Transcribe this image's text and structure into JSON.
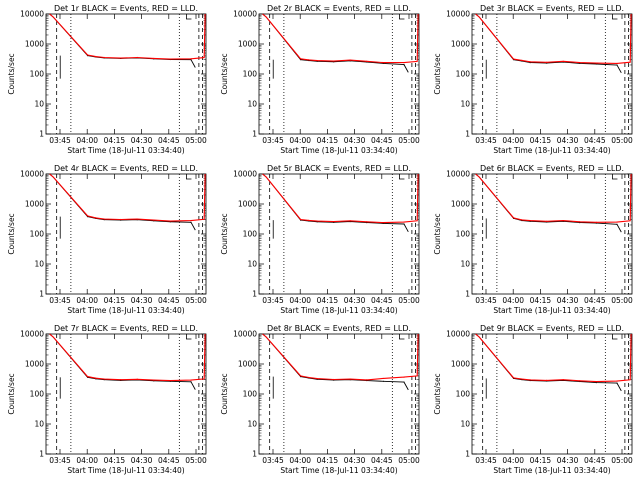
{
  "chart_data": [
    {
      "type": "line",
      "title": "Det 1r BLACK = Events, RED = LLD.",
      "xlabel": "Start Time (18-Jul-11 03:34:40)",
      "ylabel": "Counts/sec",
      "y_scale": "log",
      "ylim": [
        1,
        10000
      ],
      "y_ticks": [
        "1",
        "10",
        "100",
        "1000",
        "10000"
      ],
      "x_ticks": [
        "03:45",
        "04:00",
        "04:15",
        "04:30",
        "04:45",
        "05:00"
      ],
      "grid": false,
      "series": [
        {
          "color": "#000000",
          "x": [
            45,
            55,
            65,
            85,
            105,
            125,
            145,
            170
          ],
          "y": [
            410,
            370,
            345,
            330,
            345,
            320,
            305,
            300
          ]
        },
        {
          "color": "#ff0000",
          "x": [
            45,
            55,
            65,
            85,
            105,
            125,
            145,
            170
          ],
          "y": [
            430,
            380,
            355,
            340,
            355,
            330,
            315,
            320
          ]
        }
      ]
    },
    {
      "type": "line",
      "title": "Det 2r BLACK = Events, RED = LLD.",
      "xlabel": "Start Time (18-Jul-11 03:34:40)",
      "ylabel": "Counts/sec",
      "y_scale": "log",
      "ylim": [
        1,
        10000
      ],
      "y_ticks": [
        "1",
        "10",
        "100",
        "1000",
        "10000"
      ],
      "x_ticks": [
        "03:45",
        "04:00",
        "04:15",
        "04:30",
        "04:45",
        "05:00"
      ],
      "grid": false,
      "series": [
        {
          "color": "#000000",
          "x": [
            45,
            55,
            65,
            85,
            105,
            125,
            145,
            170
          ],
          "y": [
            300,
            280,
            265,
            255,
            275,
            250,
            225,
            205
          ]
        },
        {
          "color": "#ff0000",
          "x": [
            45,
            55,
            65,
            85,
            105,
            125,
            145,
            170
          ],
          "y": [
            320,
            295,
            280,
            270,
            290,
            265,
            240,
            240
          ]
        }
      ]
    },
    {
      "type": "line",
      "title": "Det 3r BLACK = Events, RED = LLD.",
      "xlabel": "Start Time (18-Jul-11 03:34:40)",
      "ylabel": "Counts/sec",
      "y_scale": "log",
      "ylim": [
        1,
        10000
      ],
      "y_ticks": [
        "1",
        "10",
        "100",
        "1000",
        "10000"
      ],
      "x_ticks": [
        "03:45",
        "04:00",
        "04:15",
        "04:30",
        "04:45",
        "05:00"
      ],
      "grid": false,
      "series": [
        {
          "color": "#000000",
          "x": [
            45,
            55,
            65,
            85,
            105,
            125,
            145,
            170
          ],
          "y": [
            300,
            270,
            240,
            230,
            250,
            225,
            215,
            200
          ]
        },
        {
          "color": "#ff0000",
          "x": [
            45,
            55,
            65,
            85,
            105,
            125,
            145,
            170
          ],
          "y": [
            315,
            285,
            255,
            245,
            265,
            240,
            230,
            225
          ]
        }
      ]
    },
    {
      "type": "line",
      "title": "Det 4r BLACK = Events, RED = LLD.",
      "xlabel": "Start Time (18-Jul-11 03:34:40)",
      "ylabel": "Counts/sec",
      "y_scale": "log",
      "ylim": [
        1,
        10000
      ],
      "y_ticks": [
        "1",
        "10",
        "100",
        "1000",
        "10000"
      ],
      "x_ticks": [
        "03:45",
        "04:00",
        "04:15",
        "04:30",
        "04:45",
        "05:00"
      ],
      "grid": false,
      "series": [
        {
          "color": "#000000",
          "x": [
            45,
            55,
            65,
            85,
            105,
            125,
            145,
            170
          ],
          "y": [
            380,
            330,
            300,
            290,
            300,
            275,
            255,
            245
          ]
        },
        {
          "color": "#ff0000",
          "x": [
            45,
            55,
            65,
            85,
            105,
            125,
            145,
            170
          ],
          "y": [
            400,
            345,
            315,
            305,
            315,
            290,
            270,
            280
          ]
        }
      ]
    },
    {
      "type": "line",
      "title": "Det 5r BLACK = Events, RED = LLD.",
      "xlabel": "Start Time (18-Jul-11 03:34:40)",
      "ylabel": "Counts/sec",
      "y_scale": "log",
      "ylim": [
        1,
        10000
      ],
      "y_ticks": [
        "1",
        "10",
        "100",
        "1000",
        "10000"
      ],
      "x_ticks": [
        "03:45",
        "04:00",
        "04:15",
        "04:30",
        "04:45",
        "05:00"
      ],
      "grid": false,
      "series": [
        {
          "color": "#000000",
          "x": [
            45,
            55,
            65,
            85,
            105,
            125,
            145,
            170
          ],
          "y": [
            290,
            270,
            255,
            245,
            260,
            240,
            225,
            215
          ]
        },
        {
          "color": "#ff0000",
          "x": [
            45,
            55,
            65,
            85,
            105,
            125,
            145,
            170
          ],
          "y": [
            305,
            285,
            270,
            260,
            275,
            255,
            240,
            250
          ]
        }
      ]
    },
    {
      "type": "line",
      "title": "Det 6r BLACK = Events, RED = LLD.",
      "xlabel": "Start Time (18-Jul-11 03:34:40)",
      "ylabel": "Counts/sec",
      "y_scale": "log",
      "ylim": [
        1,
        10000
      ],
      "y_ticks": [
        "1",
        "10",
        "100",
        "1000",
        "10000"
      ],
      "x_ticks": [
        "03:45",
        "04:00",
        "04:15",
        "04:30",
        "04:45",
        "05:00"
      ],
      "grid": false,
      "series": [
        {
          "color": "#000000",
          "x": [
            45,
            55,
            65,
            85,
            105,
            125,
            145,
            170
          ],
          "y": [
            330,
            280,
            265,
            250,
            265,
            240,
            230,
            210
          ]
        },
        {
          "color": "#ff0000",
          "x": [
            45,
            55,
            65,
            85,
            105,
            125,
            145,
            170
          ],
          "y": [
            345,
            295,
            280,
            265,
            280,
            255,
            245,
            250
          ]
        }
      ]
    },
    {
      "type": "line",
      "title": "Det 7r BLACK = Events, RED = LLD.",
      "xlabel": "Start Time (18-Jul-11 03:34:40)",
      "ylabel": "Counts/sec",
      "y_scale": "log",
      "ylim": [
        1,
        10000
      ],
      "y_ticks": [
        "1",
        "10",
        "100",
        "1000",
        "10000"
      ],
      "x_ticks": [
        "03:45",
        "04:00",
        "04:15",
        "04:30",
        "04:45",
        "05:00"
      ],
      "grid": false,
      "series": [
        {
          "color": "#000000",
          "x": [
            45,
            55,
            65,
            85,
            105,
            125,
            145,
            170
          ],
          "y": [
            360,
            320,
            300,
            285,
            295,
            275,
            265,
            255
          ]
        },
        {
          "color": "#ff0000",
          "x": [
            45,
            55,
            65,
            85,
            105,
            125,
            145,
            170
          ],
          "y": [
            380,
            335,
            315,
            300,
            310,
            290,
            280,
            290
          ]
        }
      ]
    },
    {
      "type": "line",
      "title": "Det 8r BLACK = Events, RED = LLD.",
      "xlabel": "Start Time (18-Jul-11 03:34:40)",
      "ylabel": "Counts/sec",
      "y_scale": "log",
      "ylim": [
        1,
        10000
      ],
      "y_ticks": [
        "1",
        "10",
        "100",
        "1000",
        "10000"
      ],
      "x_ticks": [
        "03:45",
        "04:00",
        "04:15",
        "04:30",
        "04:45",
        "05:00"
      ],
      "grid": false,
      "series": [
        {
          "color": "#000000",
          "x": [
            45,
            55,
            65,
            85,
            105,
            125,
            145,
            170
          ],
          "y": [
            380,
            340,
            310,
            290,
            300,
            280,
            265,
            250
          ]
        },
        {
          "color": "#ff0000",
          "x": [
            45,
            55,
            65,
            85,
            105,
            125,
            145,
            170
          ],
          "y": [
            400,
            355,
            325,
            305,
            315,
            295,
            330,
            365
          ]
        }
      ]
    },
    {
      "type": "line",
      "title": "Det 9r BLACK = Events, RED = LLD.",
      "xlabel": "Start Time (18-Jul-11 03:34:40)",
      "ylabel": "Counts/sec",
      "y_scale": "log",
      "ylim": [
        1,
        10000
      ],
      "y_ticks": [
        "1",
        "10",
        "100",
        "1000",
        "10000"
      ],
      "x_ticks": [
        "03:45",
        "04:00",
        "04:15",
        "04:30",
        "04:45",
        "05:00"
      ],
      "grid": false,
      "series": [
        {
          "color": "#000000",
          "x": [
            45,
            55,
            65,
            85,
            105,
            125,
            145,
            170
          ],
          "y": [
            330,
            300,
            280,
            270,
            285,
            260,
            240,
            230
          ]
        },
        {
          "color": "#ff0000",
          "x": [
            45,
            55,
            65,
            85,
            105,
            125,
            145,
            170
          ],
          "y": [
            345,
            315,
            295,
            285,
            300,
            275,
            260,
            270
          ]
        }
      ]
    }
  ]
}
